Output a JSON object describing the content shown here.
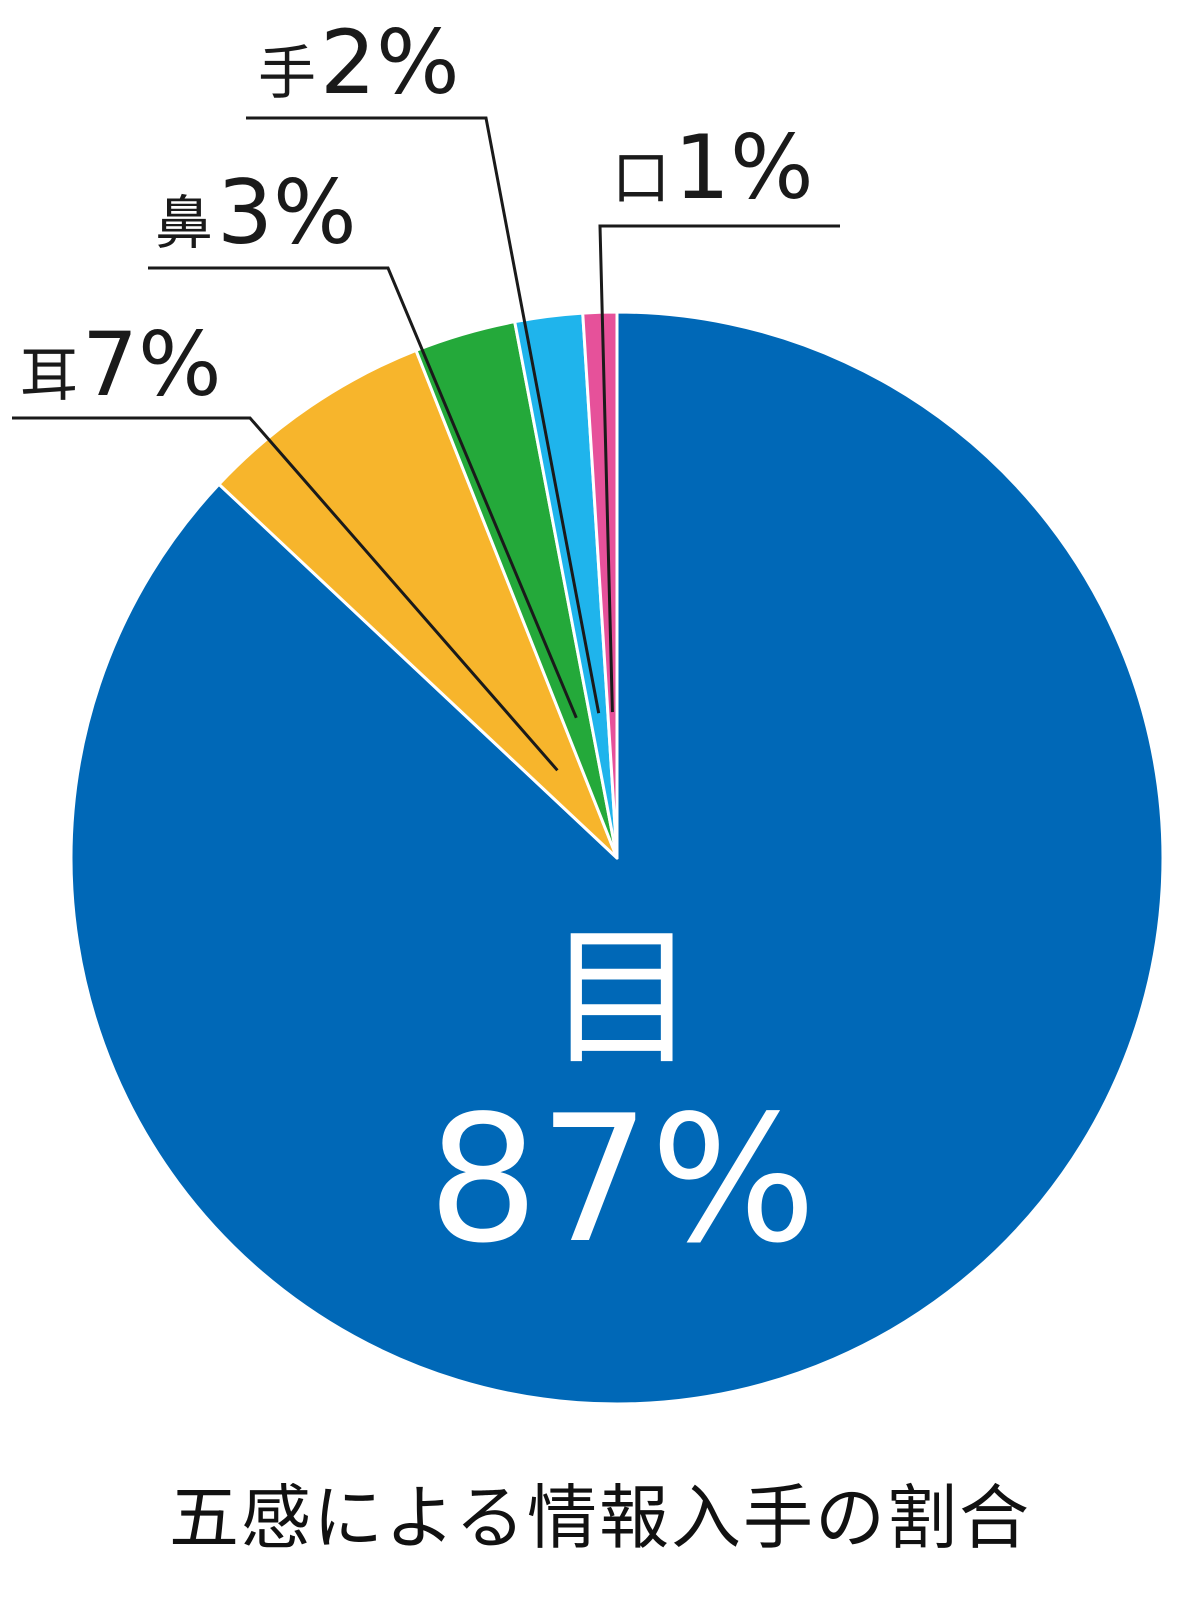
{
  "chart_data": {
    "type": "pie",
    "title": "五感による情報入手の割合",
    "slices": [
      {
        "label": "目",
        "value": 87,
        "value_label": "87%",
        "color": "#0068b7"
      },
      {
        "label": "耳",
        "value": 7,
        "value_label": "7%",
        "color": "#f7b52c"
      },
      {
        "label": "鼻",
        "value": 3,
        "value_label": "3%",
        "color": "#24a93a"
      },
      {
        "label": "手",
        "value": 2,
        "value_label": "2%",
        "color": "#1fb4ec"
      },
      {
        "label": "口",
        "value": 1,
        "value_label": "1%",
        "color": "#e6519a"
      }
    ],
    "start": "12 o'clock",
    "direction": "clockwise",
    "legend": "none"
  }
}
